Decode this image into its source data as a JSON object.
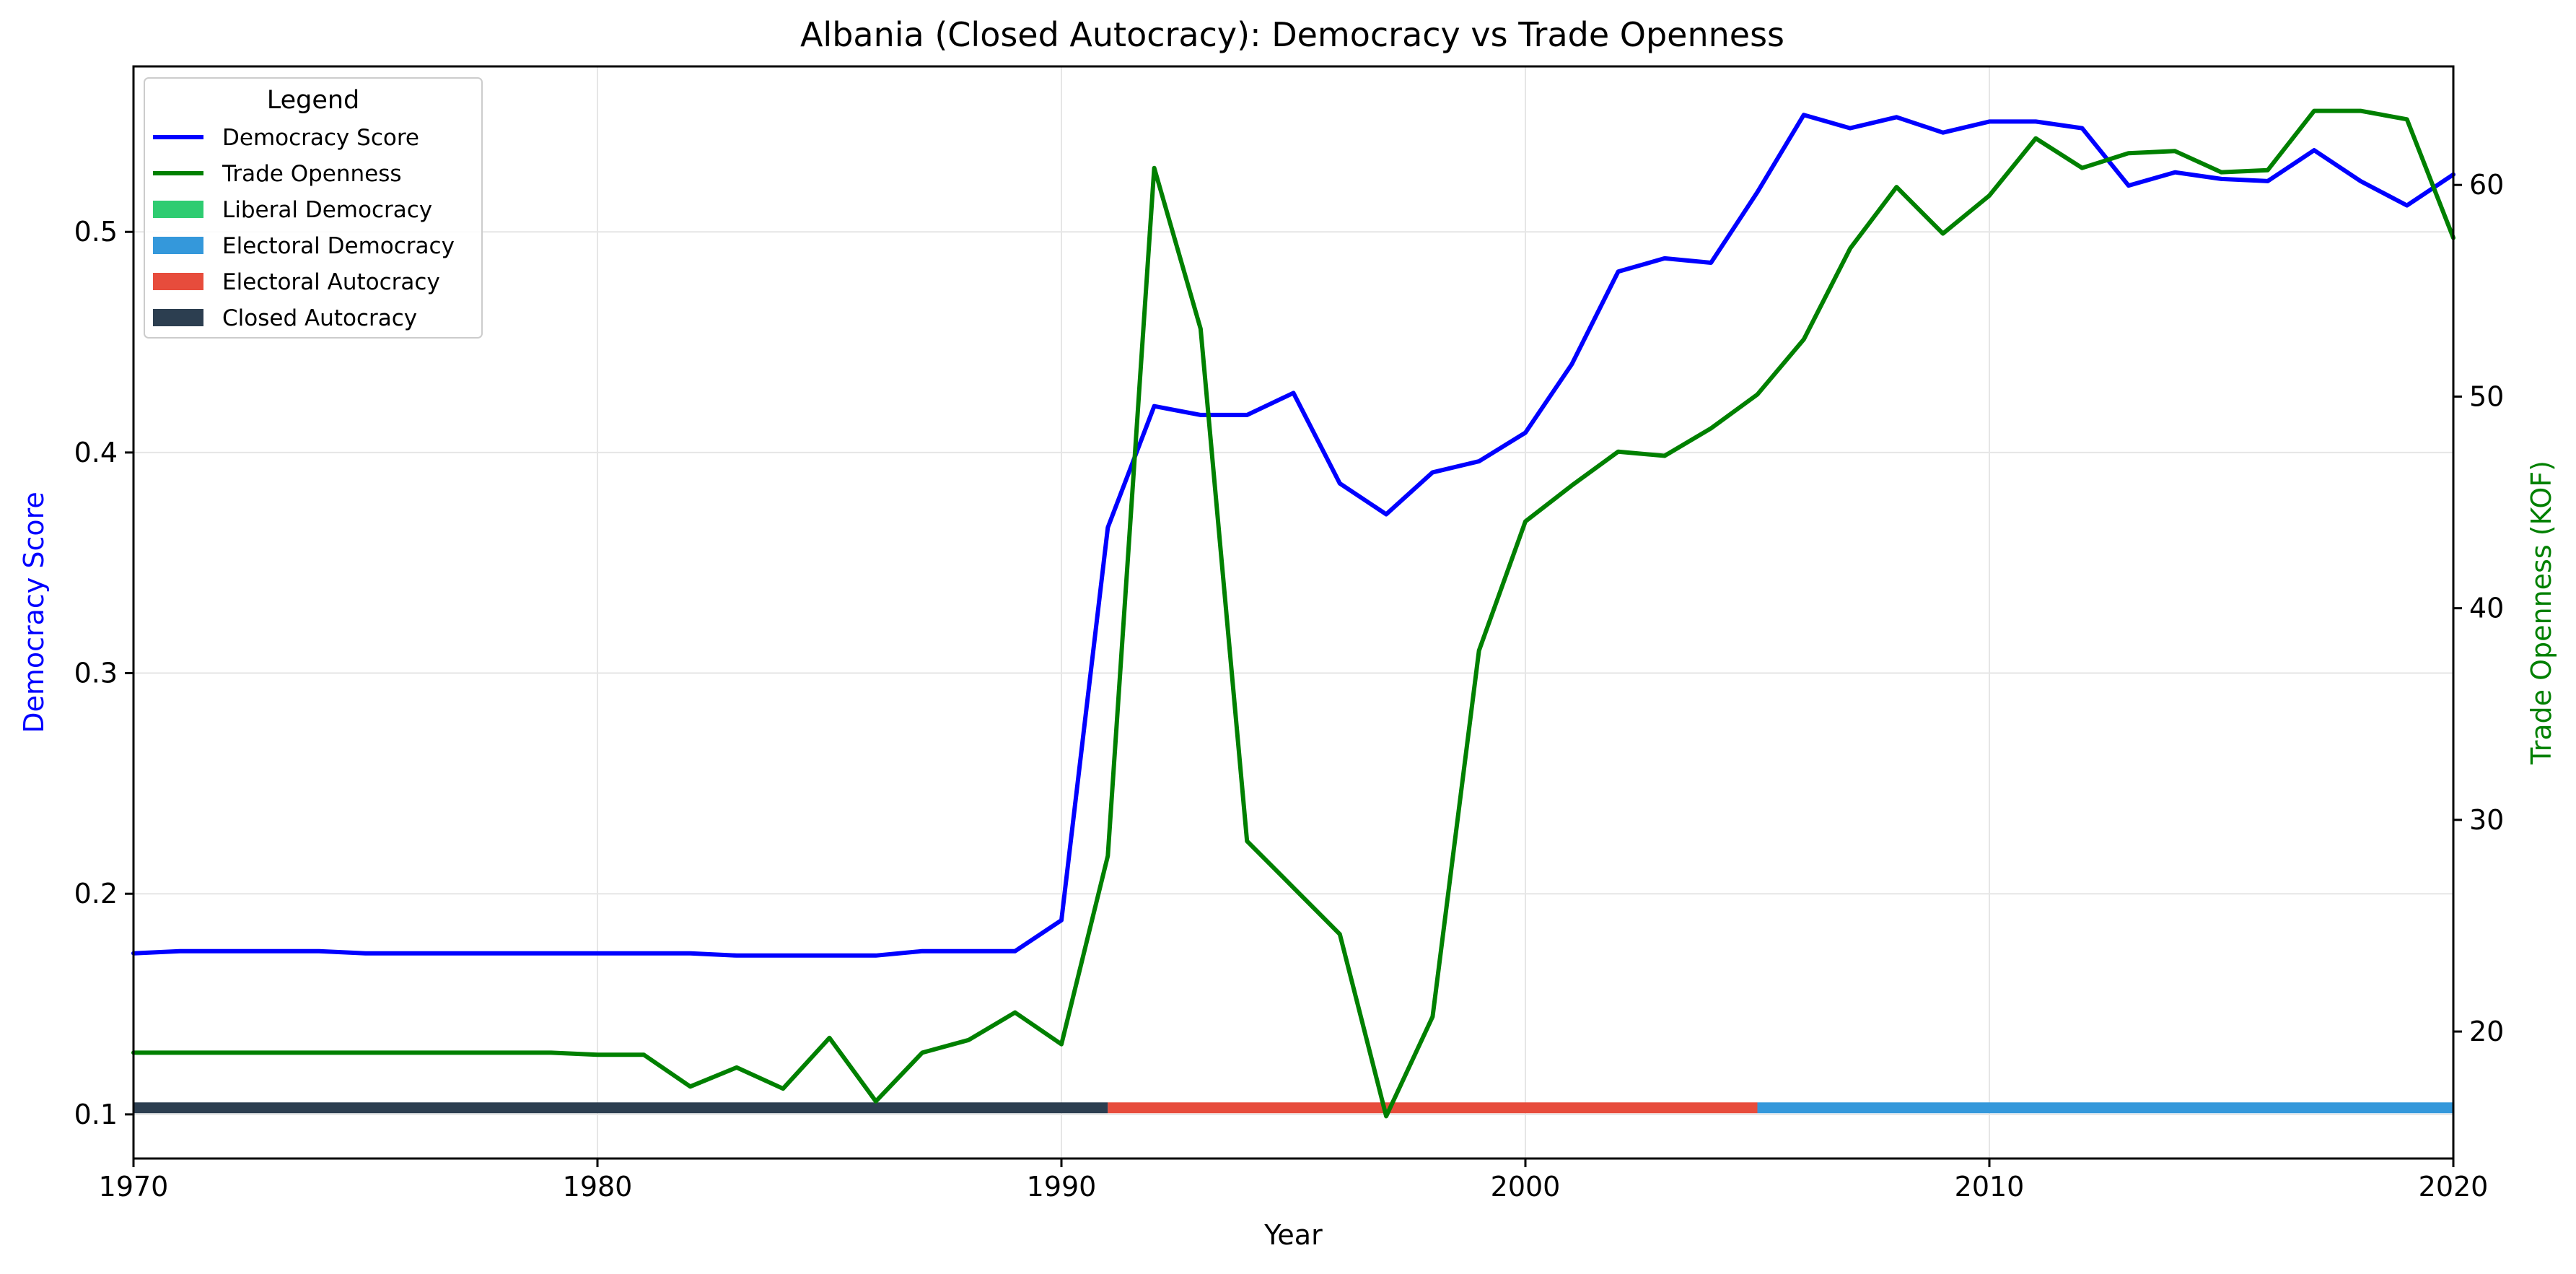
{
  "chart_data": {
    "type": "line",
    "title": "Albania (Closed Autocracy): Democracy vs Trade Openness",
    "xlabel": "Year",
    "ylabel_left": "Democracy Score",
    "ylabel_right": "Trade Openness (KOF)",
    "xlim": [
      1970,
      2020
    ],
    "ylim_left": [
      0.08,
      0.575
    ],
    "ylim_right": [
      14,
      65.6
    ],
    "x_ticks": [
      1970,
      1980,
      1990,
      2000,
      2010,
      2020
    ],
    "y_left_ticks": [
      0.1,
      0.2,
      0.3,
      0.4,
      0.5
    ],
    "y_right_ticks": [
      20,
      30,
      40,
      50,
      60
    ],
    "grid": true,
    "legend": {
      "title": "Legend",
      "placement": "top-left",
      "entries": [
        {
          "label": "Democracy Score",
          "color": "#0000ff",
          "kind": "line"
        },
        {
          "label": "Trade Openness",
          "color": "#008000",
          "kind": "line"
        },
        {
          "label": "Liberal Democracy",
          "color": "#2ecc71",
          "kind": "patch"
        },
        {
          "label": "Electoral Democracy",
          "color": "#3498db",
          "kind": "patch"
        },
        {
          "label": "Electoral Autocracy",
          "color": "#e74c3c",
          "kind": "patch"
        },
        {
          "label": "Closed Autocracy",
          "color": "#2c3e50",
          "kind": "patch"
        }
      ]
    },
    "series": [
      {
        "name": "Democracy Score",
        "axis": "left",
        "color": "#0000ff",
        "x": [
          1970,
          1971,
          1972,
          1973,
          1974,
          1975,
          1976,
          1977,
          1978,
          1979,
          1980,
          1981,
          1982,
          1983,
          1984,
          1985,
          1986,
          1987,
          1988,
          1989,
          1990,
          1991,
          1992,
          1993,
          1994,
          1995,
          1996,
          1997,
          1998,
          1999,
          2000,
          2001,
          2002,
          2003,
          2004,
          2005,
          2006,
          2007,
          2008,
          2009,
          2010,
          2011,
          2012,
          2013,
          2014,
          2015,
          2016,
          2017,
          2018,
          2019,
          2020
        ],
        "y": [
          0.173,
          0.174,
          0.174,
          0.174,
          0.174,
          0.173,
          0.173,
          0.173,
          0.173,
          0.173,
          0.173,
          0.173,
          0.173,
          0.172,
          0.172,
          0.172,
          0.172,
          0.174,
          0.174,
          0.174,
          0.188,
          0.366,
          0.421,
          0.417,
          0.417,
          0.427,
          0.386,
          0.372,
          0.391,
          0.396,
          0.409,
          0.44,
          0.482,
          0.488,
          0.486,
          0.518,
          0.553,
          0.547,
          0.552,
          0.545,
          0.55,
          0.55,
          0.547,
          0.521,
          0.527,
          0.524,
          0.523,
          0.537,
          0.523,
          0.512,
          0.526
        ]
      },
      {
        "name": "Trade Openness",
        "axis": "right",
        "color": "#008000",
        "x": [
          1970,
          1971,
          1972,
          1973,
          1974,
          1975,
          1976,
          1977,
          1978,
          1979,
          1980,
          1981,
          1982,
          1983,
          1984,
          1985,
          1986,
          1987,
          1988,
          1989,
          1990,
          1991,
          1992,
          1993,
          1994,
          1995,
          1996,
          1997,
          1998,
          1999,
          2000,
          2001,
          2002,
          2003,
          2004,
          2005,
          2006,
          2007,
          2008,
          2009,
          2010,
          2011,
          2012,
          2013,
          2014,
          2015,
          2016,
          2017,
          2018,
          2019,
          2020
        ],
        "y": [
          19.0,
          19.0,
          19.0,
          19.0,
          19.0,
          19.0,
          19.0,
          19.0,
          19.0,
          19.0,
          18.9,
          18.9,
          17.4,
          18.3,
          17.3,
          19.7,
          16.7,
          19.0,
          19.6,
          20.9,
          19.4,
          28.3,
          60.8,
          53.2,
          29.0,
          26.8,
          24.6,
          16.0,
          20.7,
          38.0,
          44.1,
          45.8,
          47.4,
          47.2,
          48.5,
          50.1,
          52.7,
          57.0,
          59.9,
          57.7,
          59.5,
          62.2,
          60.8,
          61.5,
          61.6,
          60.6,
          60.7,
          63.5,
          63.5,
          63.1,
          57.5
        ]
      }
    ],
    "regime_band": {
      "axis_value": 0.103,
      "segments": [
        {
          "start": 1970,
          "end": 1991,
          "regime": "Closed Autocracy",
          "color": "#2c3e50"
        },
        {
          "start": 1991,
          "end": 2005,
          "regime": "Electoral Autocracy",
          "color": "#e74c3c"
        },
        {
          "start": 2005,
          "end": 2020,
          "regime": "Electoral Democracy",
          "color": "#3498db"
        }
      ]
    },
    "colors": {
      "left_axis_label": "#0000ff",
      "right_axis_label": "#008000",
      "grid": "#e6e6e6",
      "frame": "#000000"
    }
  }
}
